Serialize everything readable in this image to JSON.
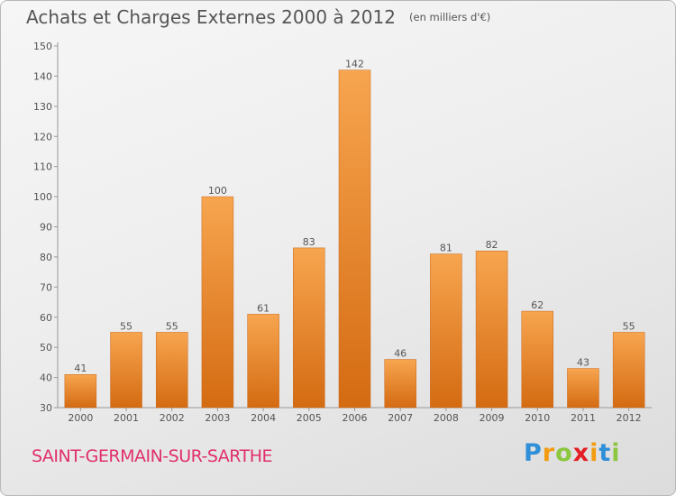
{
  "title": "Achats et Charges Externes 2000 à 2012",
  "unit_note": "(en milliers d'€)",
  "commune": "SAINT-GERMAIN-SUR-SARTHE",
  "brand": {
    "letters": [
      "P",
      "r",
      "o",
      "x",
      "i",
      "t",
      "i"
    ],
    "colors": [
      "#2f8fd8",
      "#f39c12",
      "#8dc63f",
      "#e31e24",
      "#f39c12",
      "#2f8fd8",
      "#8dc63f"
    ]
  },
  "colors": {
    "bar_top": "#f7a54f",
    "bar_bottom": "#d46b12",
    "commune": "#e0306a",
    "text": "#555555"
  },
  "chart_data": {
    "type": "bar",
    "categories": [
      "2000",
      "2001",
      "2002",
      "2003",
      "2004",
      "2005",
      "2006",
      "2007",
      "2008",
      "2009",
      "2010",
      "2011",
      "2012"
    ],
    "values": [
      41,
      55,
      55,
      100,
      61,
      83,
      142,
      46,
      81,
      82,
      62,
      43,
      55
    ],
    "ylim": [
      30,
      150
    ],
    "yticks": [
      30,
      40,
      50,
      60,
      70,
      80,
      90,
      100,
      110,
      120,
      130,
      140,
      150
    ],
    "grid": false
  }
}
